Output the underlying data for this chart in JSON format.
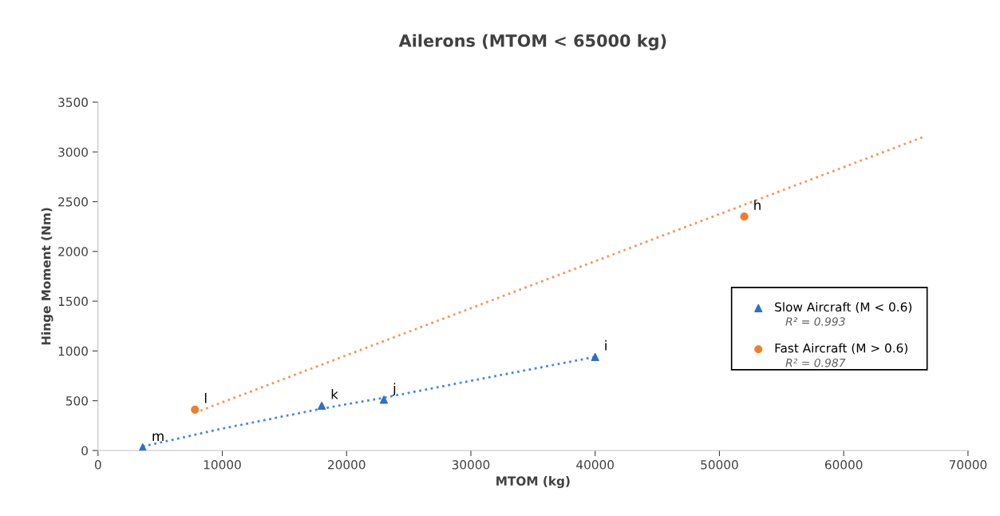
{
  "chart_data": {
    "type": "scatter",
    "title": "Ailerons (MTOM < 65000 kg)",
    "xlabel": "MTOM (kg)",
    "ylabel": "Hinge Moment (Nm)",
    "xlim": [
      0,
      70000
    ],
    "xticks": [
      0,
      10000,
      20000,
      30000,
      40000,
      50000,
      60000,
      70000
    ],
    "ylim": [
      0,
      3500
    ],
    "yticks": [
      0,
      500,
      1000,
      1500,
      2000,
      2500,
      3000,
      3500
    ],
    "grid": false,
    "legend": "right",
    "series": [
      {
        "name": "Slow Aircraft (M < 0.6)",
        "color": "#2f6fc6",
        "marker": "triangle",
        "x": [
          3600,
          18000,
          23000,
          40000
        ],
        "values": [
          30,
          450,
          510,
          940
        ]
      },
      {
        "name": "Fast Aircraft (M > 0.6)",
        "color": "#f07d2c",
        "marker": "circle",
        "x": [
          7800,
          52000
        ],
        "values": [
          410,
          2350
        ]
      },
      {
        "type": "line",
        "color": "#4a86d8",
        "line_style": "dotted",
        "marker": "none",
        "x": [
          3600,
          10000,
          18000,
          23000,
          30000,
          40000
        ],
        "values": [
          40,
          220,
          420,
          530,
          700,
          940
        ]
      },
      {
        "type": "line",
        "color": "#f5975a",
        "line_style": "dotted",
        "marker": "none",
        "x": [
          7800,
          66400
        ],
        "values": [
          380,
          3150
        ]
      }
    ],
    "annotations": [
      "R² = 0.993",
      "R² = 0.987",
      {
        "text": "m",
        "x": 3600,
        "y": 30
      },
      {
        "text": "k",
        "x": 18000,
        "y": 450
      },
      {
        "text": "j",
        "x": 23000,
        "y": 510
      },
      {
        "text": "i",
        "x": 40000,
        "y": 940
      },
      {
        "text": "l",
        "x": 7800,
        "y": 410
      },
      {
        "text": "h",
        "x": 52000,
        "y": 2350
      }
    ]
  }
}
